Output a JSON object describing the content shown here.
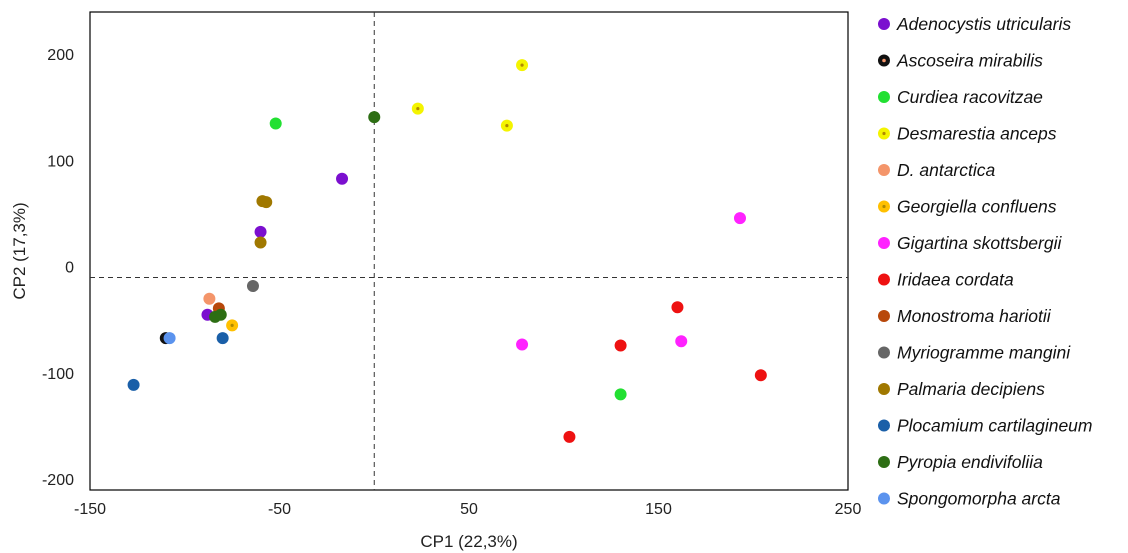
{
  "chart_data": {
    "type": "scatter",
    "xlabel": "CP1 (22,3%)",
    "ylabel": "CP2 (17,3%)",
    "xlim": [
      -150,
      250
    ],
    "ylim": [
      -200,
      250
    ],
    "xticks": [
      -150,
      -50,
      50,
      150,
      250
    ],
    "yticks": [
      -200,
      -100,
      0,
      100,
      200
    ],
    "grid": false,
    "reference_lines": {
      "x": 0,
      "y": 0,
      "style": "dashed"
    },
    "legend_position": "right",
    "series": [
      {
        "name": "Adenocystis utricularis",
        "color": "#7b0fcf",
        "points": [
          [
            -17,
            93
          ],
          [
            -60,
            43
          ],
          [
            -88,
            -35
          ]
        ]
      },
      {
        "name": "Ascoseira mirabilis",
        "color": "#111111",
        "points": [
          [
            -110,
            -57
          ]
        ]
      },
      {
        "name": "Curdiea racovitzae",
        "color": "#22e032",
        "points": [
          [
            -52,
            145
          ],
          [
            130,
            -110
          ]
        ]
      },
      {
        "name": "Desmarestia anceps",
        "color": "#f4f400",
        "points": [
          [
            23,
            159
          ],
          [
            70,
            143
          ],
          [
            78,
            200
          ]
        ]
      },
      {
        "name": "D. antarctica",
        "color": "#f4956a",
        "points": [
          [
            -87,
            -20
          ]
        ]
      },
      {
        "name": "Georgiella confluens",
        "color": "#ffc000",
        "points": [
          [
            -75,
            -45
          ]
        ]
      },
      {
        "name": "Gigartina skottsbergii",
        "color": "#ff22ff",
        "points": [
          [
            78,
            -63
          ],
          [
            162,
            -60
          ],
          [
            193,
            56
          ]
        ]
      },
      {
        "name": "Iridaea cordata",
        "color": "#ee1111",
        "points": [
          [
            103,
            -150
          ],
          [
            130,
            -64
          ],
          [
            160,
            -28
          ],
          [
            204,
            -92
          ]
        ]
      },
      {
        "name": "Monostroma hariotii",
        "color": "#b8480b",
        "points": [
          [
            -82,
            -29
          ]
        ]
      },
      {
        "name": "Myriogramme mangini",
        "color": "#666666",
        "points": [
          [
            -64,
            -8
          ]
        ]
      },
      {
        "name": "Palmaria decipiens",
        "color": "#a07800",
        "points": [
          [
            -59,
            72
          ],
          [
            -57,
            71
          ],
          [
            -60,
            33
          ]
        ]
      },
      {
        "name": "Plocamium cartilagineum",
        "color": "#1a5fa8",
        "points": [
          [
            -127,
            -101
          ],
          [
            -80,
            -57
          ]
        ]
      },
      {
        "name": "Pyropia endivifoliia",
        "color": "#2d6e14",
        "points": [
          [
            0,
            151
          ],
          [
            -84,
            -37
          ],
          [
            -81,
            -35
          ]
        ]
      },
      {
        "name": "Spongomorpha arcta",
        "color": "#5b93ee",
        "points": [
          [
            -108,
            -57
          ]
        ]
      }
    ]
  }
}
